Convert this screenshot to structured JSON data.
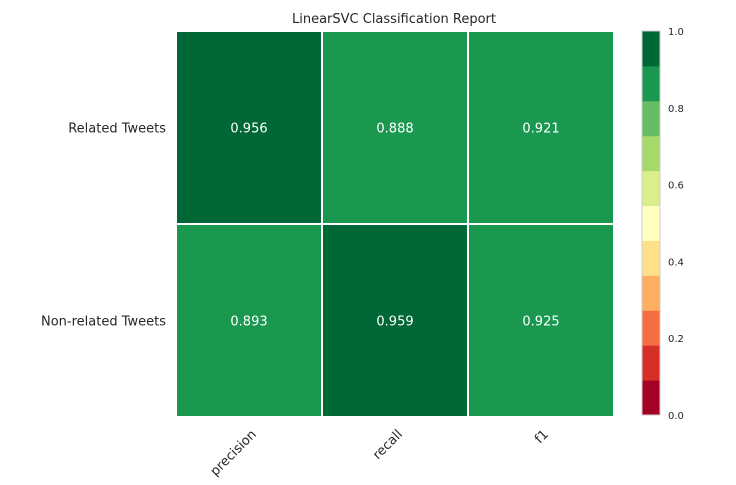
{
  "chart_data": {
    "type": "heatmap",
    "title": "LinearSVC Classification Report",
    "rows": [
      "Related Tweets",
      "Non-related Tweets"
    ],
    "columns": [
      "precision",
      "recall",
      "f1"
    ],
    "values": [
      [
        0.956,
        0.888,
        0.921
      ],
      [
        0.893,
        0.959,
        0.925
      ]
    ],
    "value_labels": [
      [
        "0.956",
        "0.888",
        "0.921"
      ],
      [
        "0.893",
        "0.959",
        "0.925"
      ]
    ],
    "vmin": 0.0,
    "vmax": 1.0,
    "colormap": "RdYlGn",
    "colorbar": {
      "ticks": [
        "0.0",
        "0.2",
        "0.4",
        "0.6",
        "0.8",
        "1.0"
      ],
      "bins": 10,
      "colors": [
        "#a50026",
        "#d62f27",
        "#f46d43",
        "#fdae61",
        "#fee08b",
        "#ffffbf",
        "#d9ef8b",
        "#a6d96a",
        "#66bd63",
        "#1a9850",
        "#006837"
      ]
    },
    "grid": false
  }
}
